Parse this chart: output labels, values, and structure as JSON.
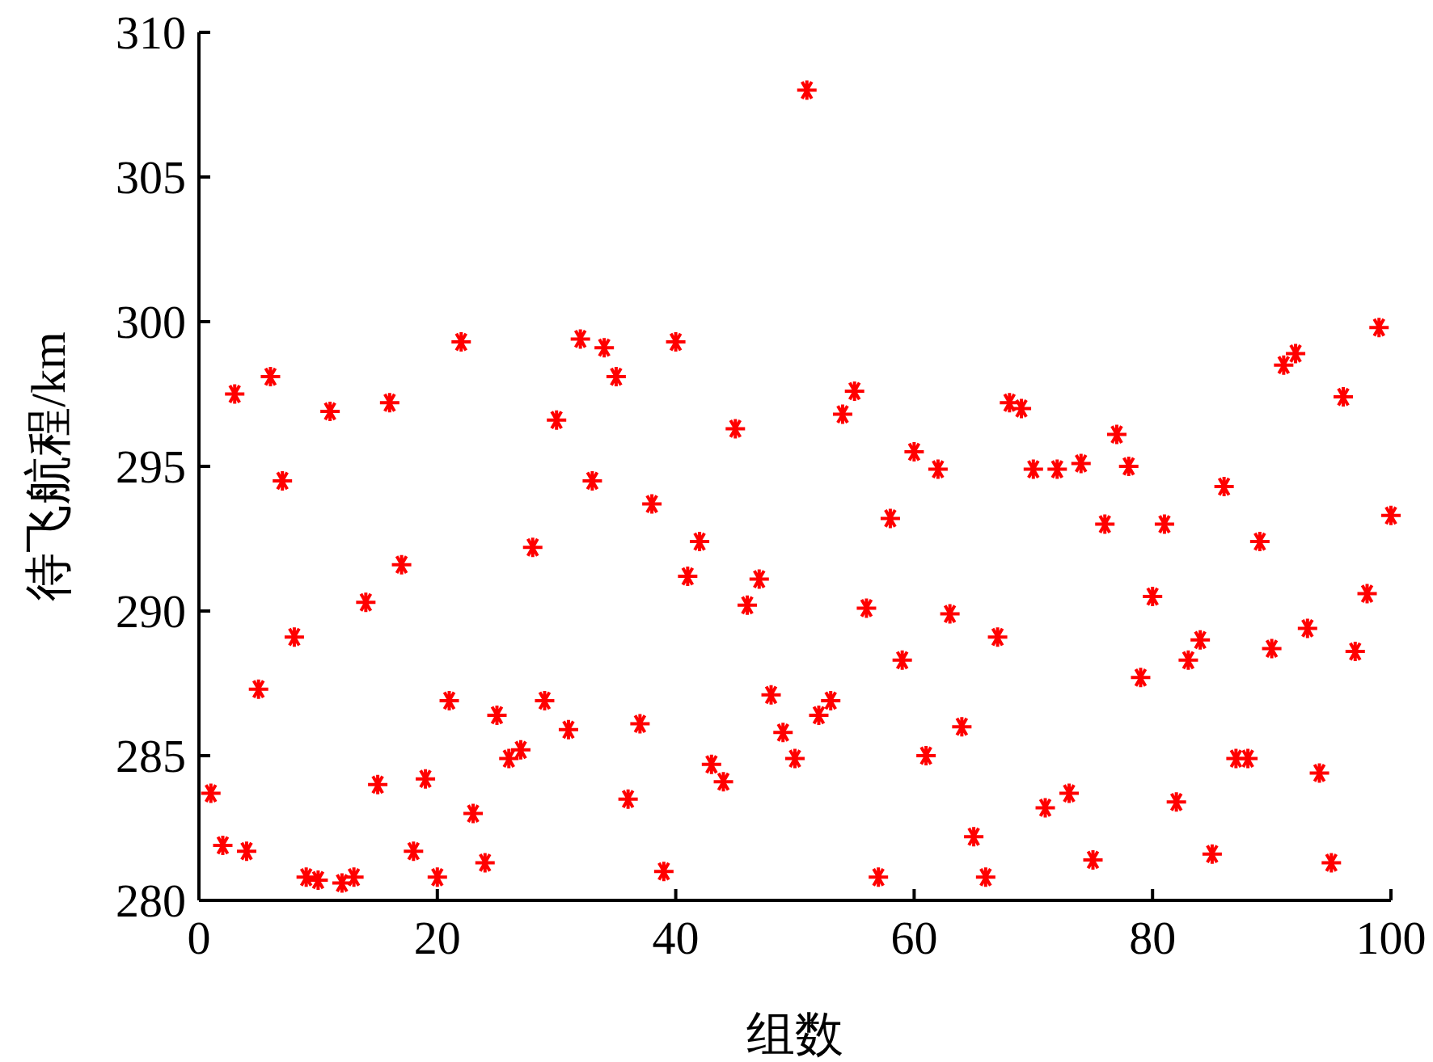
{
  "chart_data": {
    "type": "scatter",
    "xlabel": "组数",
    "ylabel": "待飞航程/km",
    "x": [
      1,
      2,
      3,
      4,
      5,
      6,
      7,
      8,
      9,
      10,
      11,
      12,
      13,
      14,
      15,
      16,
      17,
      18,
      19,
      20,
      21,
      22,
      23,
      24,
      25,
      26,
      27,
      28,
      29,
      30,
      31,
      32,
      33,
      34,
      35,
      36,
      37,
      38,
      39,
      40,
      41,
      42,
      43,
      44,
      45,
      46,
      47,
      48,
      49,
      50,
      51,
      52,
      53,
      54,
      55,
      56,
      57,
      58,
      59,
      60,
      61,
      62,
      63,
      64,
      65,
      66,
      67,
      68,
      69,
      70,
      71,
      72,
      73,
      74,
      75,
      76,
      77,
      78,
      79,
      80,
      81,
      82,
      83,
      84,
      85,
      86,
      87,
      88,
      89,
      90,
      91,
      92,
      93,
      94,
      95,
      96,
      97,
      98,
      99,
      100
    ],
    "series": [
      {
        "color": "#ff0000",
        "values": [
          283.7,
          281.9,
          297.5,
          281.7,
          287.3,
          298.1,
          294.5,
          289.1,
          280.8,
          280.7,
          296.9,
          280.6,
          280.8,
          290.3,
          284.0,
          297.2,
          291.6,
          281.7,
          284.2,
          280.8,
          286.9,
          299.3,
          283.0,
          281.3,
          286.4,
          284.9,
          285.2,
          292.2,
          286.9,
          296.6,
          285.9,
          299.4,
          294.5,
          299.1,
          298.1,
          283.5,
          286.1,
          293.7,
          281.0,
          299.3,
          291.2,
          292.4,
          284.7,
          284.1,
          296.3,
          290.2,
          291.1,
          287.1,
          285.8,
          284.9,
          308.0,
          286.4,
          286.9,
          296.8,
          297.6,
          290.1,
          280.8,
          293.2,
          288.3,
          295.5,
          285.0,
          294.9,
          289.9,
          286.0,
          282.2,
          280.8,
          289.1,
          297.2,
          297.0,
          294.9,
          283.2,
          294.9,
          283.7,
          295.1,
          281.4,
          293.0,
          296.1,
          295.0,
          287.7,
          290.5,
          293.0,
          283.4,
          288.3,
          289.0,
          281.6,
          294.3,
          284.9,
          284.9,
          292.4,
          288.7,
          298.5,
          298.9,
          289.4,
          284.4,
          281.3,
          297.4,
          288.6,
          290.6,
          299.8,
          293.3
        ]
      }
    ],
    "xlim": [
      0,
      100
    ],
    "ylim": [
      280,
      310
    ],
    "xticks": [
      0,
      20,
      40,
      60,
      80,
      100
    ],
    "yticks": [
      280,
      285,
      290,
      295,
      300,
      305,
      310
    ],
    "marker": "cross",
    "grid": false
  }
}
